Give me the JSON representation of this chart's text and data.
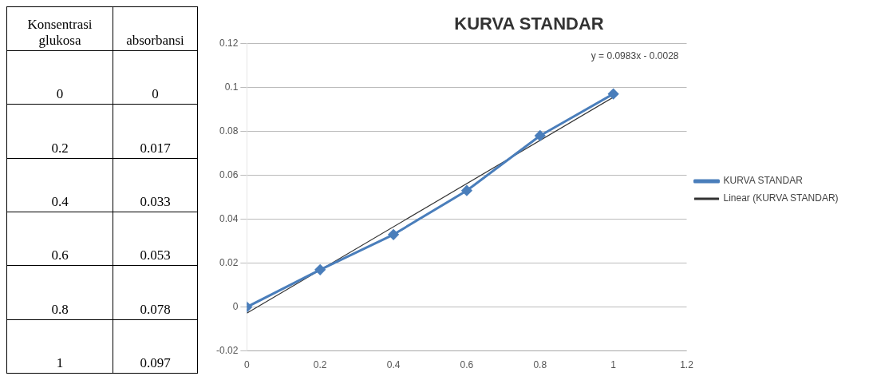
{
  "chart_data": {
    "type": "line",
    "title": "KURVA STANDAR",
    "x": [
      0,
      0.2,
      0.4,
      0.6,
      0.8,
      1
    ],
    "series": [
      {
        "name": "KURVA STANDAR",
        "color": "#4a7ebb",
        "values": [
          0,
          0.017,
          0.033,
          0.053,
          0.078,
          0.097
        ],
        "marker": "diamond"
      },
      {
        "name": "Linear (KURVA STANDAR)",
        "type": "line",
        "color": "#333333",
        "x": [
          0,
          1
        ],
        "values": [
          -0.0028,
          0.0955
        ],
        "marker": "none"
      }
    ],
    "xlim": [
      0,
      1.2
    ],
    "xticks": [
      0,
      0.2,
      0.4,
      0.6,
      0.8,
      1,
      1.2
    ],
    "ylim": [
      -0.02,
      0.12
    ],
    "yticks": [
      -0.02,
      0,
      0.02,
      0.04,
      0.06,
      0.08,
      0.1,
      0.12
    ],
    "grid": "y",
    "legend": "right",
    "annotations": [
      "y = 0.0983x - 0.0028",
      "Konsentrasi glukosa",
      "absorbansi",
      "0",
      "0",
      "0.2",
      "0.017",
      "0.4",
      "0.033",
      "0.6",
      "0.053",
      "0.8",
      "0.078",
      "1",
      "0.097"
    ]
  }
}
